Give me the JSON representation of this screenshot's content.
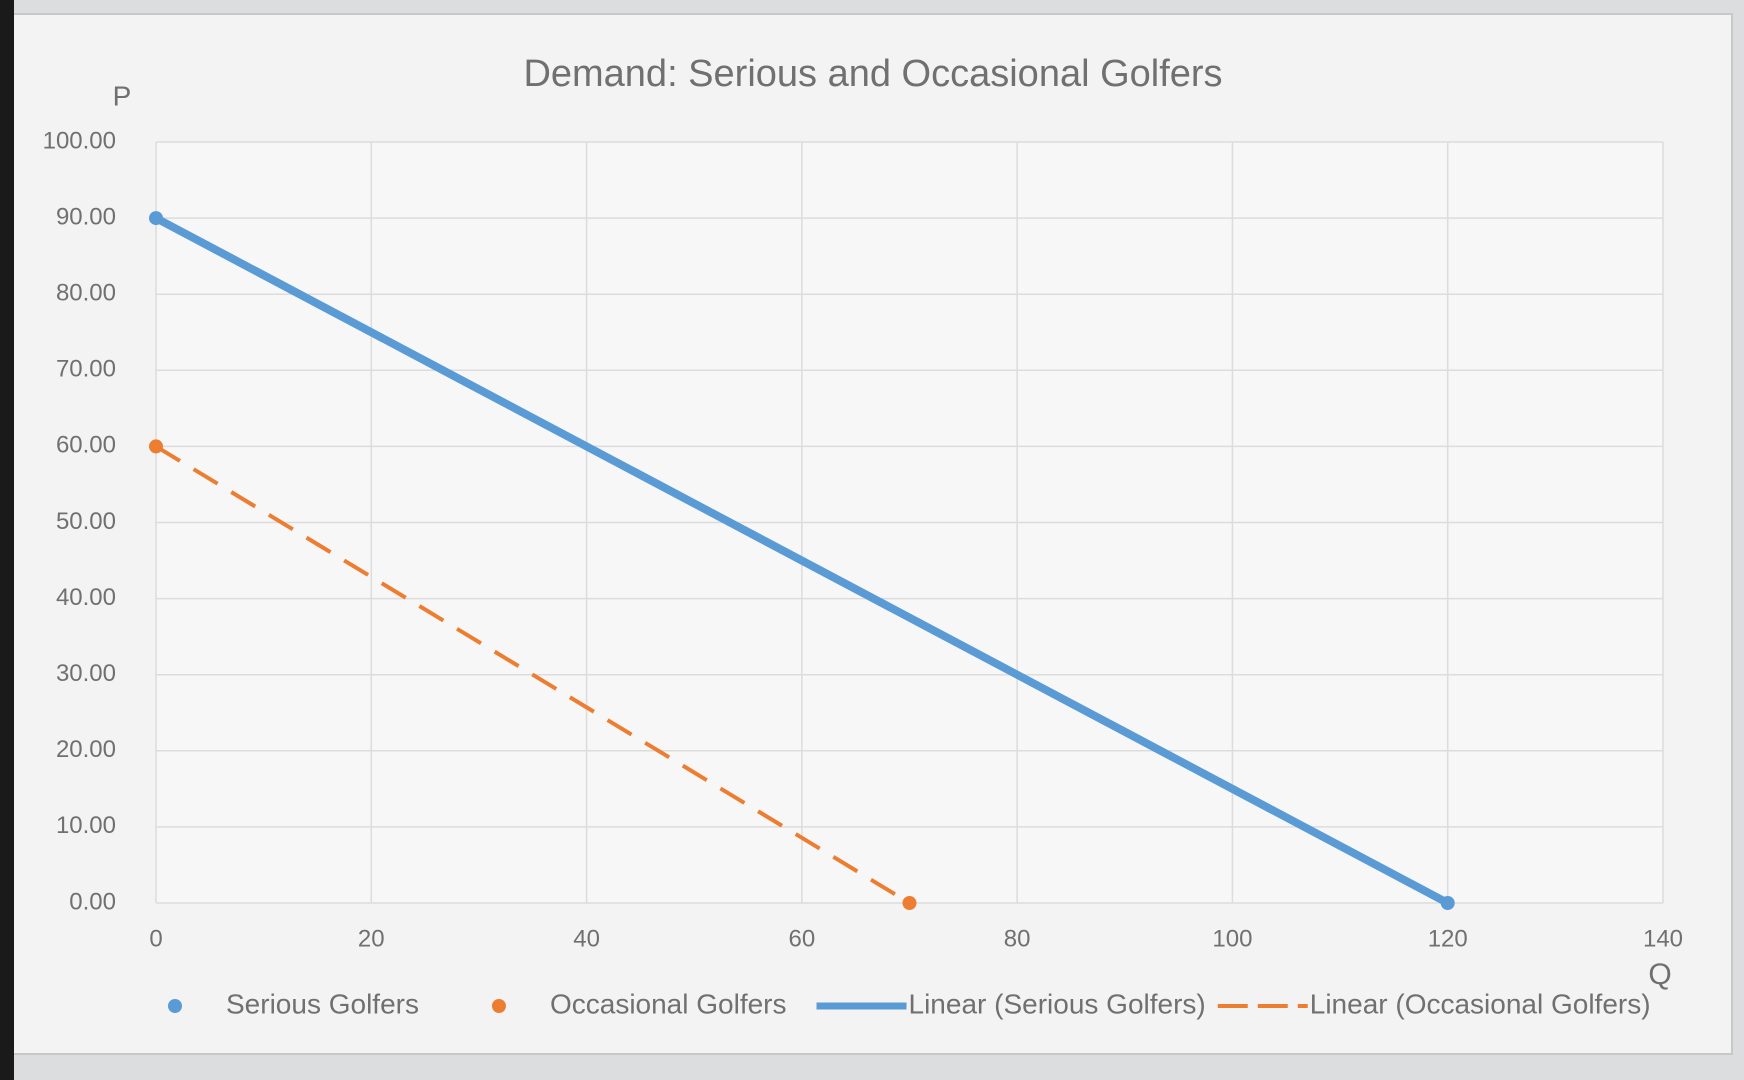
{
  "chart_data": {
    "type": "scatter",
    "title": "Demand:  Serious and Occasional Golfers",
    "xlabel": "Q",
    "ylabel": "P",
    "series": [
      {
        "name": "Serious Golfers",
        "color": "#5b9bd5",
        "x": [
          0,
          120
        ],
        "values": [
          90,
          0
        ]
      },
      {
        "name": "Occasional Golfers",
        "color": "#ed7d31",
        "x": [
          0,
          70
        ],
        "values": [
          60,
          0
        ]
      }
    ],
    "trendlines": [
      {
        "name": "Linear (Serious Golfers)",
        "series": 0,
        "color": "#5b9bd5",
        "dash": "solid"
      },
      {
        "name": "Linear (Occasional Golfers)",
        "series": 1,
        "color": "#ed7d31",
        "dash": "dashed"
      }
    ],
    "xlim": [
      0,
      140
    ],
    "xticks": [
      0,
      20,
      40,
      60,
      80,
      100,
      120,
      140
    ],
    "ylim": [
      0,
      100
    ],
    "yticks": [
      {
        "value": 0,
        "label": "0.00"
      },
      {
        "value": 10,
        "label": "10.00"
      },
      {
        "value": 20,
        "label": "20.00"
      },
      {
        "value": 30,
        "label": "30.00"
      },
      {
        "value": 40,
        "label": "40.00"
      },
      {
        "value": 50,
        "label": "50.00"
      },
      {
        "value": 60,
        "label": "60.00"
      },
      {
        "value": 70,
        "label": "70.00"
      },
      {
        "value": 80,
        "label": "80.00"
      },
      {
        "value": 90,
        "label": "90.00"
      },
      {
        "value": 100,
        "label": "100.00"
      }
    ],
    "grid": true,
    "legend": "bottom"
  }
}
